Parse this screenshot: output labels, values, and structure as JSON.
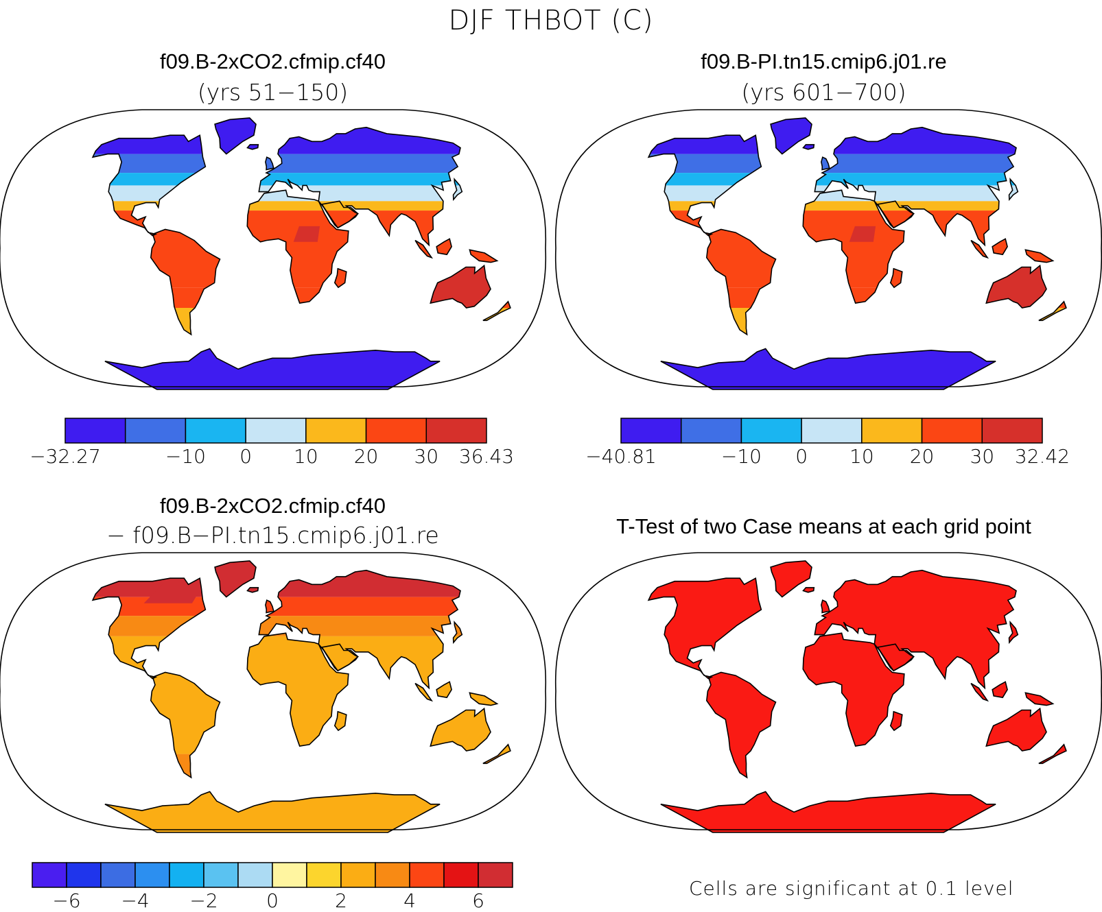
{
  "figure": {
    "title": "DJF THBOT (C)"
  },
  "panels": [
    {
      "case": "f09.B-2xCO2.cfmip.cf40",
      "subtitle": "(yrs 51−150)",
      "scheme": "absolute"
    },
    {
      "case": "f09.B-PI.tn15.cmip6.j01.re",
      "subtitle": "(yrs 601−700)",
      "scheme": "absolute"
    },
    {
      "case": "f09.B-2xCO2.cfmip.cf40",
      "subtitle": "− f09.B−PI.tn15.cmip6.j01.re",
      "scheme": "difference"
    },
    {
      "case": "T-Test of two Case means at each grid point",
      "subtitle": "",
      "scheme": "significance"
    }
  ],
  "colorbars": [
    {
      "colors": [
        "#3f1cf0",
        "#3f6fe6",
        "#1ab5f1",
        "#c7e5f6",
        "#fbb81c",
        "#fb4614",
        "#d6302b"
      ],
      "labels": [
        "−32.27",
        "",
        "−10",
        "0",
        "10",
        "20",
        "30",
        "36.43"
      ]
    },
    {
      "colors": [
        "#3f1cf0",
        "#3f6fe6",
        "#1ab5f1",
        "#c7e5f6",
        "#fbb81c",
        "#fb4614",
        "#d6302b"
      ],
      "labels": [
        "−40.81",
        "",
        "−10",
        "0",
        "10",
        "20",
        "30",
        "32.42"
      ]
    },
    {
      "colors": [
        "#4a1ef0",
        "#1f35ec",
        "#3c6de3",
        "#2c8ff0",
        "#13b1f1",
        "#5ac2f1",
        "#acdbf3",
        "#fff5a0",
        "#fcd52d",
        "#fbad14",
        "#f88a14",
        "#fc4614",
        "#e41314",
        "#d12d32"
      ],
      "labels": [
        "",
        "−6",
        "",
        "−4",
        "",
        "−2",
        "",
        "0",
        "",
        "2",
        "",
        "4",
        "",
        "6",
        ""
      ]
    }
  ],
  "significance": {
    "note": "Cells are significant at 0.1 level",
    "color": "#fa1a14"
  }
}
